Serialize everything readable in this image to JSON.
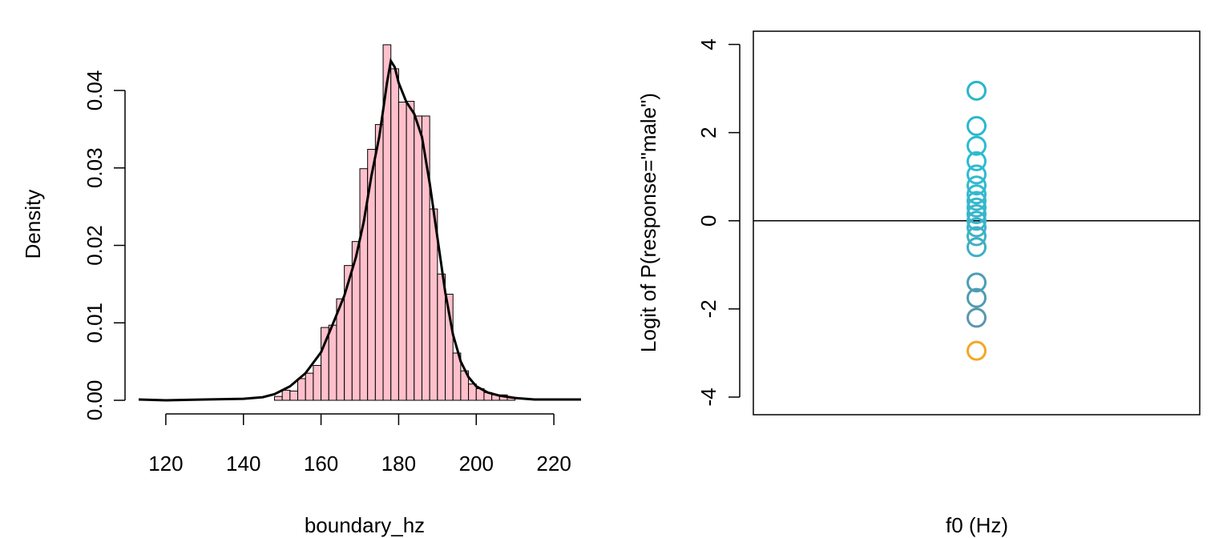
{
  "chart_data": [
    {
      "type": "histogram",
      "title": "",
      "xlabel": "boundary_hz",
      "ylabel": "Density",
      "x_ticks": [
        120,
        140,
        160,
        180,
        200,
        220
      ],
      "y_ticks": [
        "0.00",
        "0.01",
        "0.02",
        "0.03",
        "0.04"
      ],
      "xlim": [
        113,
        227
      ],
      "ylim": [
        0,
        0.04
      ],
      "bar_color": "#FFC0CB",
      "edge_color": "#000000",
      "line_color": "#000000",
      "bins": [
        {
          "x0": 148,
          "x1": 150,
          "density": 0.0005
        },
        {
          "x0": 150,
          "x1": 152,
          "density": 0.0013
        },
        {
          "x0": 152,
          "x1": 154,
          "density": 0.0012
        },
        {
          "x0": 154,
          "x1": 156,
          "density": 0.0028
        },
        {
          "x0": 156,
          "x1": 158,
          "density": 0.0035
        },
        {
          "x0": 158,
          "x1": 160,
          "density": 0.0045
        },
        {
          "x0": 160,
          "x1": 162,
          "density": 0.0094
        },
        {
          "x0": 162,
          "x1": 164,
          "density": 0.0097
        },
        {
          "x0": 164,
          "x1": 166,
          "density": 0.0131
        },
        {
          "x0": 166,
          "x1": 168,
          "density": 0.0174
        },
        {
          "x0": 168,
          "x1": 170,
          "density": 0.0205
        },
        {
          "x0": 170,
          "x1": 172,
          "density": 0.0299
        },
        {
          "x0": 172,
          "x1": 174,
          "density": 0.0324
        },
        {
          "x0": 174,
          "x1": 176,
          "density": 0.0356
        },
        {
          "x0": 176,
          "x1": 178,
          "density": 0.0459
        },
        {
          "x0": 178,
          "x1": 180,
          "density": 0.0428
        },
        {
          "x0": 180,
          "x1": 182,
          "density": 0.0385
        },
        {
          "x0": 182,
          "x1": 184,
          "density": 0.0386
        },
        {
          "x0": 184,
          "x1": 186,
          "density": 0.0367
        },
        {
          "x0": 186,
          "x1": 188,
          "density": 0.0367
        },
        {
          "x0": 188,
          "x1": 190,
          "density": 0.0247
        },
        {
          "x0": 190,
          "x1": 192,
          "density": 0.0163
        },
        {
          "x0": 192,
          "x1": 194,
          "density": 0.0137
        },
        {
          "x0": 194,
          "x1": 196,
          "density": 0.0061
        },
        {
          "x0": 196,
          "x1": 198,
          "density": 0.0038
        },
        {
          "x0": 198,
          "x1": 200,
          "density": 0.0021
        },
        {
          "x0": 200,
          "x1": 202,
          "density": 0.0015
        },
        {
          "x0": 202,
          "x1": 204,
          "density": 0.001
        },
        {
          "x0": 204,
          "x1": 206,
          "density": 0.0007
        },
        {
          "x0": 206,
          "x1": 208,
          "density": 0.0007
        },
        {
          "x0": 208,
          "x1": 210,
          "density": 0.0004
        }
      ],
      "density_curve": {
        "x": [
          113,
          120,
          130,
          140,
          145,
          148,
          152,
          156,
          160,
          163,
          166,
          169,
          171,
          173,
          175,
          176,
          177,
          178,
          179,
          180,
          182,
          184,
          186,
          188,
          190,
          192,
          194,
          196,
          198,
          200,
          203,
          206,
          210,
          215,
          220,
          227
        ],
        "y": [
          0.0001,
          0.0,
          0.0001,
          0.0002,
          0.0004,
          0.0008,
          0.0018,
          0.0035,
          0.0062,
          0.0098,
          0.0135,
          0.0185,
          0.023,
          0.029,
          0.034,
          0.0375,
          0.041,
          0.0438,
          0.043,
          0.041,
          0.0385,
          0.037,
          0.034,
          0.028,
          0.021,
          0.014,
          0.0085,
          0.005,
          0.003,
          0.0018,
          0.001,
          0.0006,
          0.0003,
          0.0001,
          0.0001,
          0.0001
        ]
      }
    },
    {
      "type": "scatter",
      "title": "",
      "xlabel": "f0 (Hz)",
      "ylabel": "Logit of P(response=\"male\")",
      "y_ticks": [
        "-4",
        "-2",
        "0",
        "2",
        "4"
      ],
      "ylim": [
        -4.4,
        4.3
      ],
      "hline_y": 0,
      "point_x_fraction": 0.5,
      "marker": "open-circle",
      "points": [
        {
          "y": 2.95,
          "color": "#29B6CC"
        },
        {
          "y": 2.15,
          "color": "#2BB8CF"
        },
        {
          "y": 1.7,
          "color": "#2CBBD1"
        },
        {
          "y": 1.35,
          "color": "#2DBBD2"
        },
        {
          "y": 1.05,
          "color": "#2FBAD1"
        },
        {
          "y": 0.8,
          "color": "#33B9CF"
        },
        {
          "y": 0.6,
          "color": "#35B8CE"
        },
        {
          "y": 0.45,
          "color": "#36B8CE"
        },
        {
          "y": 0.3,
          "color": "#37B7CC"
        },
        {
          "y": 0.15,
          "color": "#38B6CB"
        },
        {
          "y": 0.0,
          "color": "#3AB4CA"
        },
        {
          "y": -0.15,
          "color": "#3DB3C8"
        },
        {
          "y": -0.35,
          "color": "#3FB1C6"
        },
        {
          "y": -0.6,
          "color": "#3DAFC6"
        },
        {
          "y": -1.4,
          "color": "#4A9FB5"
        },
        {
          "y": -1.75,
          "color": "#4E9CB1"
        },
        {
          "y": -2.2,
          "color": "#5C96AE"
        },
        {
          "y": -2.95,
          "color": "#F5A623"
        }
      ]
    }
  ]
}
